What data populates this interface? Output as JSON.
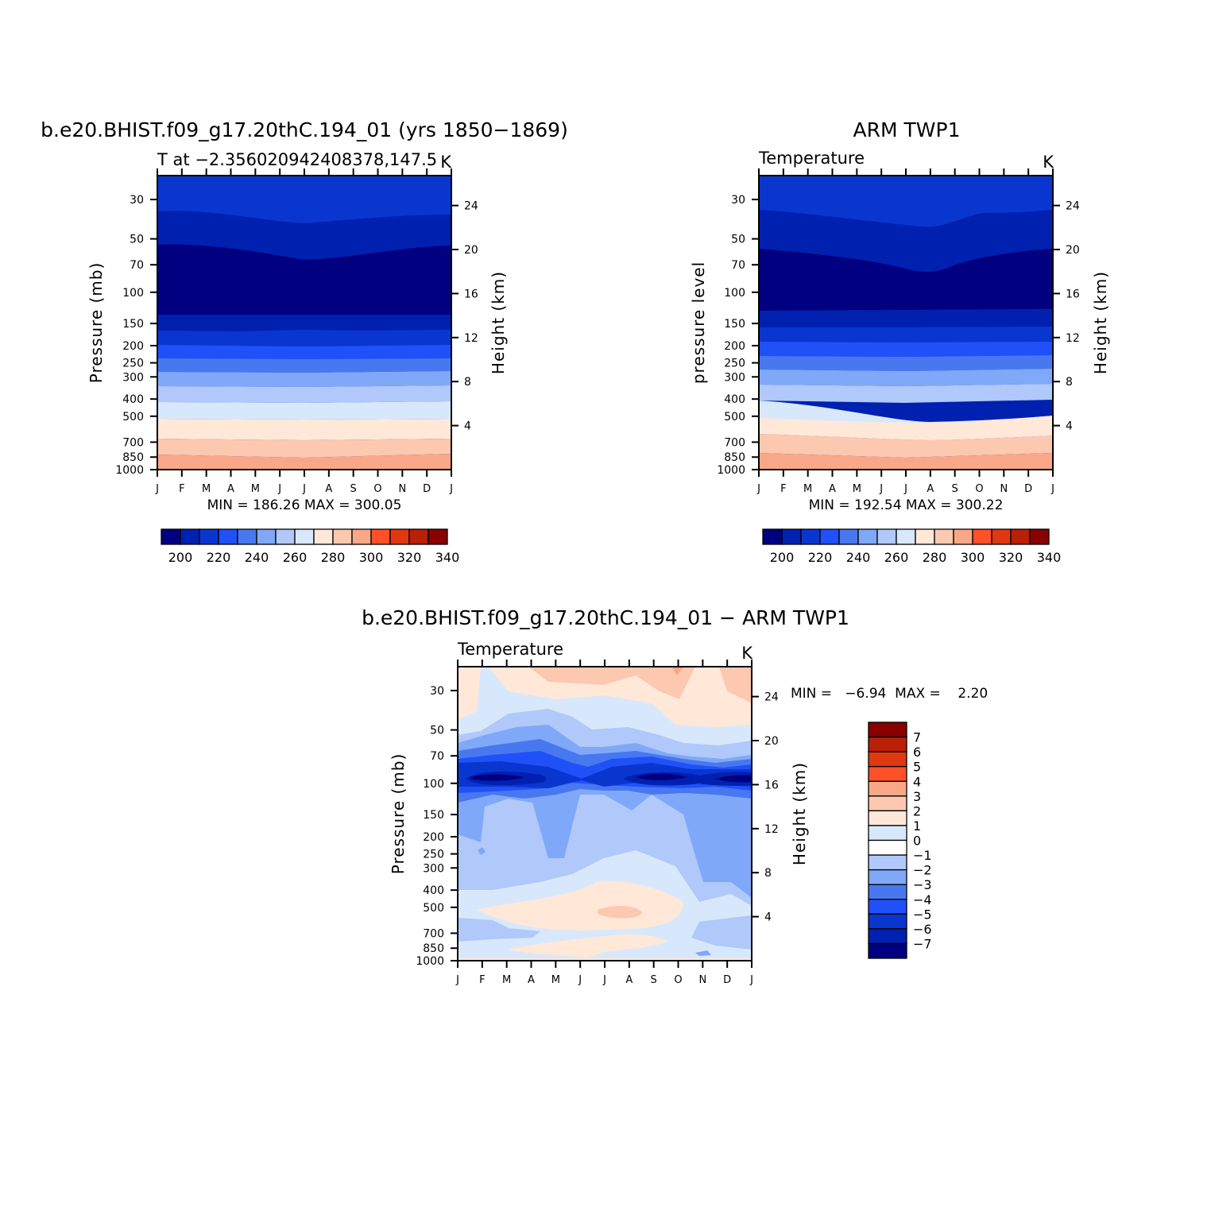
{
  "panels": [
    {
      "id": "model",
      "title": "b.e20.BHIST.f09_g17.20thC.194_01 (yrs 1850−1869)",
      "subtitle_left": "T at −2.356020942408378,147.5",
      "subtitle_right": "K",
      "ylabel_left": "Pressure (mb)",
      "ylabel_right": "Height (km)",
      "stats": "MIN = 186.26 MAX = 300.05"
    },
    {
      "id": "obs",
      "title": "ARM TWP1",
      "subtitle_left": "Temperature",
      "subtitle_right": "K",
      "ylabel_left": "pressure level",
      "ylabel_right": "Height (km)",
      "stats": "MIN = 192.54 MAX = 300.22"
    },
    {
      "id": "diff",
      "title": "b.e20.BHIST.f09_g17.20thC.194_01 − ARM TWP1",
      "subtitle_left": "Temperature",
      "subtitle_right": "K",
      "ylabel_left": "Pressure (mb)",
      "ylabel_right": "Height (km)",
      "stats": "MIN =   −6.94  MAX =    2.20"
    }
  ],
  "chart_data": [
    {
      "type": "heatmap",
      "panel": "model",
      "x_categories": [
        "J",
        "F",
        "M",
        "A",
        "M",
        "J",
        "J",
        "A",
        "S",
        "O",
        "N",
        "D",
        "J"
      ],
      "pressure_ticks_mb": [
        30,
        50,
        70,
        100,
        150,
        200,
        250,
        300,
        400,
        500,
        700,
        850,
        1000
      ],
      "height_ticks_km": [
        4,
        8,
        12,
        16,
        20,
        24
      ],
      "y_log_scale": true,
      "contour_levels_K": [
        200,
        210,
        220,
        230,
        240,
        250,
        260,
        270,
        280,
        290,
        300,
        310,
        320,
        330,
        340
      ],
      "colorbar_labels": [
        "200",
        "220",
        "240",
        "260",
        "280",
        "300",
        "320",
        "340"
      ],
      "approx_temperature_by_level_K": {
        "30": 213,
        "50": 205,
        "70": 195,
        "100": 190,
        "150": 203,
        "200": 217,
        "250": 227,
        "300": 236,
        "400": 252,
        "500": 265,
        "700": 278,
        "850": 289,
        "1000": 299
      },
      "min": 186.26,
      "max": 300.05
    },
    {
      "type": "heatmap",
      "panel": "obs",
      "x_categories": [
        "J",
        "F",
        "M",
        "A",
        "M",
        "J",
        "J",
        "A",
        "S",
        "O",
        "N",
        "D",
        "J"
      ],
      "pressure_ticks_mb": [
        30,
        50,
        70,
        100,
        150,
        200,
        250,
        300,
        400,
        500,
        700,
        850,
        1000
      ],
      "height_ticks_km": [
        4,
        8,
        12,
        16,
        20,
        24
      ],
      "y_log_scale": true,
      "contour_levels_K": [
        200,
        210,
        220,
        230,
        240,
        250,
        260,
        270,
        280,
        290,
        300,
        310,
        320,
        330,
        340
      ],
      "colorbar_labels": [
        "200",
        "220",
        "240",
        "260",
        "280",
        "300",
        "320",
        "340"
      ],
      "approx_temperature_by_level_K": {
        "30": 214,
        "50": 205,
        "70": 196,
        "100": 192,
        "150": 204,
        "200": 218,
        "250": 228,
        "300": 236,
        "400": 252,
        "500": 266,
        "700": 280,
        "850": 289,
        "1000": 299
      },
      "min": 192.54,
      "max": 300.22
    },
    {
      "type": "heatmap",
      "panel": "diff",
      "x_categories": [
        "J",
        "F",
        "M",
        "A",
        "M",
        "J",
        "J",
        "A",
        "S",
        "O",
        "N",
        "D",
        "J"
      ],
      "pressure_ticks_mb": [
        30,
        50,
        70,
        100,
        150,
        200,
        250,
        300,
        400,
        500,
        700,
        850,
        1000
      ],
      "height_ticks_km": [
        4,
        8,
        12,
        16,
        20,
        24
      ],
      "y_log_scale": true,
      "contour_levels_K": [
        -7,
        -6,
        -5,
        -4,
        -3,
        -2,
        -1,
        0,
        1,
        2,
        3,
        4,
        5,
        6,
        7
      ],
      "colorbar_labels": [
        "7",
        "6",
        "5",
        "4",
        "3",
        "2",
        "1",
        "0",
        "−1",
        "−2",
        "−3",
        "−4",
        "−5",
        "−6",
        "−7"
      ],
      "min": -6.94,
      "max": 2.2
    }
  ],
  "colors": {
    "palette": [
      "#000080",
      "#0020B0",
      "#0A36D0",
      "#2050F8",
      "#4878F0",
      "#80A8F8",
      "#B0C8FA",
      "#D8E8FC",
      "#FFE8D8",
      "#FCC8B0",
      "#F8A888",
      "#FF5028",
      "#E03810",
      "#B82008",
      "#880000"
    ]
  }
}
